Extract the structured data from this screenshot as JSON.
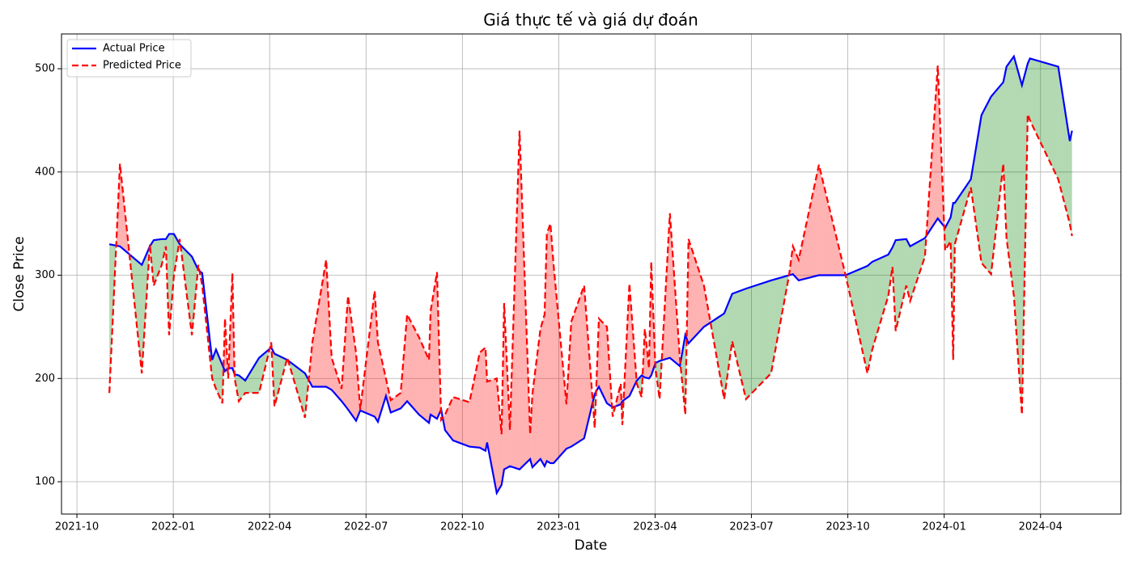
{
  "chart_data": {
    "type": "line",
    "title": "Giá thực tế và giá dự đoán",
    "x_label": "Date",
    "y_label": "Close Price",
    "x": [
      1.01,
      1.34,
      2.02,
      2.27,
      2.39,
      2.64,
      2.77,
      2.87,
      3.02,
      3.2,
      3.58,
      3.78,
      3.9,
      4.21,
      4.33,
      4.53,
      4.61,
      4.71,
      4.84,
      4.91,
      5.04,
      5.24,
      5.67,
      6.05,
      6.15,
      6.55,
      7.1,
      7.33,
      7.76,
      7.93,
      8.24,
      8.44,
      8.69,
      8.82,
      9.27,
      9.37,
      9.62,
      9.77,
      10.08,
      10.28,
      10.65,
      10.96,
      11.01,
      11.21,
      11.34,
      11.46,
      11.71,
      12.22,
      12.54,
      12.72,
      12.77,
      13.07,
      13.22,
      13.3,
      13.48,
      13.78,
      14.11,
      14.18,
      14.43,
      14.56,
      14.63,
      14.74,
      14.84,
      15.24,
      15.39,
      15.79,
      16.12,
      16.25,
      16.5,
      16.68,
      16.93,
      16.98,
      17.2,
      17.43,
      17.58,
      17.68,
      17.81,
      17.88,
      18.01,
      18.14,
      18.46,
      18.77,
      18.94,
      19.04,
      19.52,
      20.15,
      20.4,
      20.83,
      21.61,
      22.17,
      22.29,
      22.47,
      23.1,
      23.93,
      24.61,
      24.76,
      25.26,
      25.39,
      25.49,
      25.82,
      25.94,
      26.4,
      26.8,
      27.03,
      27.2,
      27.28,
      27.33,
      27.83,
      28.16,
      28.46,
      28.84,
      28.94,
      29.17,
      29.42,
      29.6,
      29.67,
      30.55,
      30.91,
      30.98
    ],
    "series": [
      {
        "name": "Actual Price",
        "color": "#0000ff",
        "dashed": false,
        "values": [
          330,
          328,
          310,
          328,
          334,
          335,
          335,
          340,
          340,
          330,
          318,
          305,
          302,
          218,
          228,
          213,
          207,
          210,
          210,
          204,
          203,
          198,
          220,
          230,
          224,
          218,
          205,
          192,
          192,
          189,
          178,
          170,
          159,
          169,
          163,
          158,
          183,
          167,
          171,
          178,
          165,
          157,
          165,
          161,
          170,
          150,
          140,
          134,
          133,
          130,
          138,
          89,
          97,
          112,
          115,
          112,
          122,
          114,
          122,
          115,
          120,
          118,
          118,
          132,
          134,
          142,
          185,
          192,
          176,
          172,
          175,
          178,
          183,
          198,
          203,
          201,
          200,
          203,
          215,
          217,
          220,
          212,
          242,
          234,
          250,
          263,
          282,
          287,
          295,
          300,
          301,
          295,
          300,
          300,
          309,
          313,
          320,
          327,
          334,
          335,
          328,
          336,
          355,
          346,
          356,
          370,
          370,
          393,
          455,
          473,
          487,
          502,
          512,
          484,
          505,
          510,
          502,
          430,
          440
        ]
      },
      {
        "name": "Predicted Price",
        "color": "#ff0000",
        "dashed": true,
        "values": [
          186,
          408,
          205,
          330,
          290,
          310,
          328,
          242,
          300,
          335,
          242,
          310,
          290,
          200,
          190,
          176,
          258,
          200,
          302,
          200,
          178,
          186,
          186,
          235,
          173,
          220,
          162,
          235,
          315,
          220,
          190,
          280,
          225,
          170,
          285,
          235,
          200,
          179,
          186,
          262,
          240,
          218,
          265,
          303,
          160,
          165,
          182,
          177,
          225,
          230,
          197,
          200,
          146,
          273,
          150,
          440,
          146,
          185,
          248,
          262,
          340,
          350,
          310,
          175,
          255,
          290,
          152,
          258,
          250,
          163,
          195,
          155,
          292,
          195,
          182,
          248,
          210,
          313,
          210,
          180,
          360,
          220,
          165,
          335,
          290,
          180,
          236,
          180,
          205,
          300,
          328,
          315,
          407,
          300,
          205,
          228,
          280,
          308,
          246,
          290,
          275,
          318,
          503,
          324,
          333,
          218,
          330,
          385,
          312,
          301,
          408,
          336,
          280,
          165,
          456,
          450,
          393,
          350,
          338
        ]
      }
    ],
    "fill_between": {
      "above": "#008000",
      "below": "#ff0000",
      "alpha": 0.3
    },
    "xlim": [
      -0.48,
      32.5
    ],
    "ylim": [
      68.7,
      533.7
    ],
    "xticks": [
      {
        "value": 0,
        "label": "2021-10"
      },
      {
        "value": 3,
        "label": "2022-01"
      },
      {
        "value": 6,
        "label": "2022-04"
      },
      {
        "value": 9,
        "label": "2022-07"
      },
      {
        "value": 12,
        "label": "2022-10"
      },
      {
        "value": 15,
        "label": "2023-01"
      },
      {
        "value": 18,
        "label": "2023-04"
      },
      {
        "value": 21,
        "label": "2023-07"
      },
      {
        "value": 24,
        "label": "2023-10"
      },
      {
        "value": 27,
        "label": "2024-01"
      },
      {
        "value": 30,
        "label": "2024-04"
      }
    ],
    "yticks": [
      100,
      200,
      300,
      400,
      500
    ],
    "grid": true,
    "legend": "upper left"
  }
}
